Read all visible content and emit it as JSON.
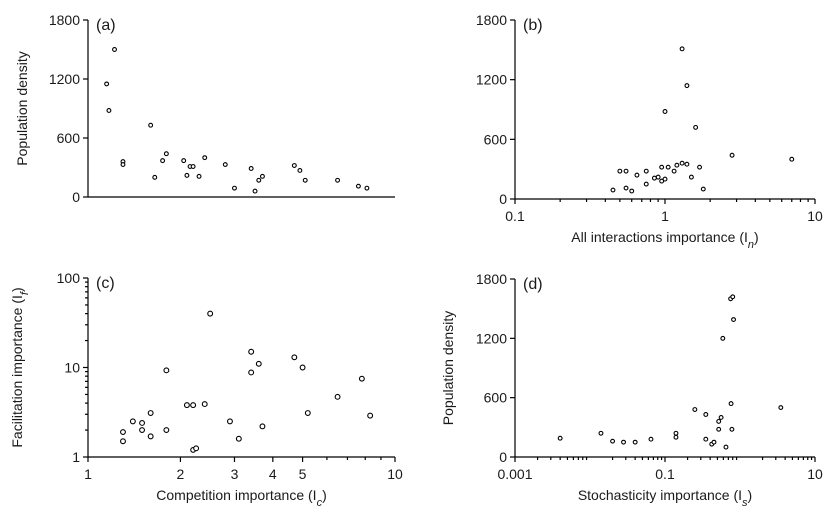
{
  "chart_data": [
    {
      "panel": "(a)",
      "type": "scatter",
      "xlabel": "",
      "ylabel": "Population density",
      "xscale": "log",
      "xlim": [
        1,
        10
      ],
      "ylim": [
        0,
        1800
      ],
      "yticks": [
        0,
        600,
        1200,
        1800
      ],
      "xticks": [],
      "points": [
        [
          1.22,
          1500
        ],
        [
          1.15,
          1150
        ],
        [
          1.17,
          880
        ],
        [
          1.3,
          360
        ],
        [
          1.3,
          330
        ],
        [
          1.6,
          730
        ],
        [
          1.65,
          200
        ],
        [
          1.8,
          440
        ],
        [
          1.75,
          370
        ],
        [
          2.05,
          370
        ],
        [
          2.15,
          310
        ],
        [
          2.2,
          310
        ],
        [
          2.3,
          210
        ],
        [
          2.4,
          400
        ],
        [
          2.1,
          220
        ],
        [
          2.8,
          330
        ],
        [
          3.0,
          90
        ],
        [
          3.4,
          290
        ],
        [
          3.6,
          170
        ],
        [
          3.5,
          60
        ],
        [
          3.7,
          210
        ],
        [
          4.7,
          320
        ],
        [
          4.9,
          270
        ],
        [
          5.1,
          170
        ],
        [
          6.5,
          170
        ],
        [
          7.6,
          110
        ],
        [
          8.1,
          90
        ]
      ]
    },
    {
      "panel": "(b)",
      "type": "scatter",
      "xlabel": "All interactions importance (I",
      "xlabel_sub": "n",
      "xlabel_tail": ")",
      "ylabel": "",
      "xscale": "log",
      "xlim": [
        0.1,
        10
      ],
      "ylim": [
        0,
        1800
      ],
      "xticks": [
        "0.1",
        "1",
        "10"
      ],
      "yticks": [
        0,
        600,
        1200,
        1800
      ],
      "points": [
        [
          1.3,
          1510
        ],
        [
          1.4,
          1140
        ],
        [
          1.0,
          880
        ],
        [
          1.6,
          720
        ],
        [
          2.8,
          440
        ],
        [
          7.0,
          400
        ],
        [
          1.3,
          360
        ],
        [
          1.4,
          350
        ],
        [
          1.2,
          340
        ],
        [
          0.5,
          280
        ],
        [
          0.55,
          280
        ],
        [
          0.75,
          280
        ],
        [
          0.95,
          320
        ],
        [
          1.05,
          320
        ],
        [
          1.15,
          280
        ],
        [
          1.7,
          320
        ],
        [
          0.65,
          240
        ],
        [
          0.9,
          220
        ],
        [
          1.0,
          200
        ],
        [
          1.5,
          220
        ],
        [
          0.95,
          180
        ],
        [
          0.85,
          210
        ],
        [
          0.75,
          150
        ],
        [
          0.55,
          110
        ],
        [
          0.45,
          90
        ],
        [
          0.6,
          80
        ],
        [
          1.8,
          100
        ]
      ]
    },
    {
      "panel": "(c)",
      "type": "scatter",
      "xlabel": "Competition importance (I",
      "xlabel_sub": "c",
      "xlabel_tail": ")",
      "ylabel": "Facilitation importance (I",
      "ylabel_sub": "f",
      "ylabel_tail": ")",
      "xscale": "log",
      "yscale": "log",
      "xlim": [
        1,
        10
      ],
      "ylim": [
        1,
        100
      ],
      "xticks": [
        "1",
        "2",
        "3",
        "4",
        "5",
        "10"
      ],
      "yticks": [
        "1",
        "10",
        "100"
      ],
      "points": [
        [
          2.5,
          40
        ],
        [
          3.4,
          15
        ],
        [
          4.7,
          13
        ],
        [
          3.6,
          11
        ],
        [
          5.0,
          10
        ],
        [
          3.4,
          8.8
        ],
        [
          1.8,
          9.3
        ],
        [
          7.8,
          7.5
        ],
        [
          6.5,
          4.7
        ],
        [
          2.1,
          3.8
        ],
        [
          2.2,
          3.8
        ],
        [
          2.4,
          3.9
        ],
        [
          1.6,
          3.1
        ],
        [
          5.2,
          3.1
        ],
        [
          8.3,
          2.9
        ],
        [
          2.9,
          2.5
        ],
        [
          1.4,
          2.5
        ],
        [
          1.5,
          2.4
        ],
        [
          1.5,
          2.0
        ],
        [
          1.3,
          1.9
        ],
        [
          1.8,
          2.0
        ],
        [
          1.6,
          1.7
        ],
        [
          1.3,
          1.5
        ],
        [
          3.1,
          1.6
        ],
        [
          3.7,
          2.2
        ],
        [
          2.2,
          1.2
        ],
        [
          2.25,
          1.25
        ]
      ]
    },
    {
      "panel": "(d)",
      "type": "scatter",
      "xlabel": "Stochasticity importance (I",
      "xlabel_sub": "s",
      "xlabel_tail": ")",
      "ylabel": "Population density",
      "xscale": "log",
      "xlim": [
        0.001,
        10
      ],
      "ylim": [
        0,
        1800
      ],
      "xticks": [
        "0.001",
        "0.1",
        "10"
      ],
      "yticks": [
        0,
        600,
        1200,
        1800
      ],
      "points": [
        [
          0.004,
          190
        ],
        [
          0.014,
          240
        ],
        [
          0.02,
          160
        ],
        [
          0.028,
          150
        ],
        [
          0.04,
          150
        ],
        [
          0.065,
          180
        ],
        [
          0.14,
          200
        ],
        [
          0.14,
          240
        ],
        [
          0.25,
          480
        ],
        [
          0.35,
          180
        ],
        [
          0.35,
          430
        ],
        [
          0.42,
          130
        ],
        [
          0.45,
          150
        ],
        [
          0.52,
          280
        ],
        [
          0.52,
          360
        ],
        [
          0.56,
          400
        ],
        [
          0.59,
          1200
        ],
        [
          0.75,
          1600
        ],
        [
          0.8,
          1620
        ],
        [
          0.82,
          1390
        ],
        [
          0.76,
          540
        ],
        [
          0.78,
          280
        ],
        [
          0.65,
          100
        ],
        [
          3.5,
          500
        ]
      ]
    }
  ]
}
